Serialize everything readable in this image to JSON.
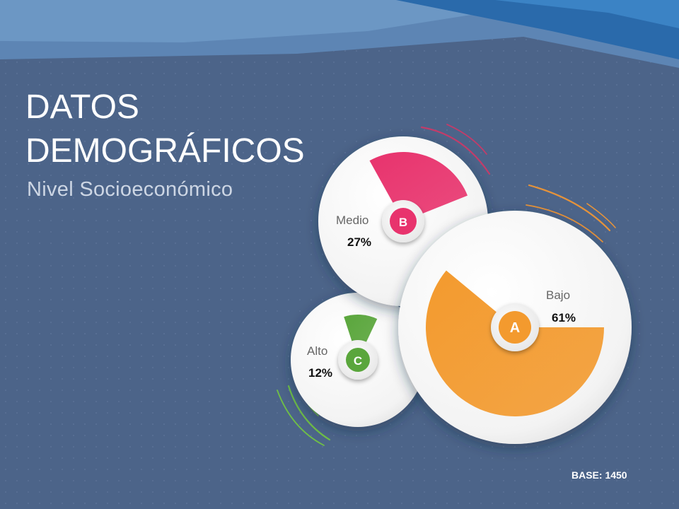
{
  "title": [
    "DATOS",
    "DEMOGRÁFICOS"
  ],
  "subtitle": "Nivel Socioeconómico",
  "base_note": "BASE: 1450",
  "colors": {
    "background": "#4c6489",
    "medio": "#e8336d",
    "bajo": "#f39a2e",
    "alto": "#5aa63c"
  },
  "chart_data": {
    "type": "pie",
    "title": "Nivel Socioeconómico",
    "categories": [
      "Bajo",
      "Medio",
      "Alto"
    ],
    "values": [
      61,
      27,
      12
    ],
    "labels": [
      "61%",
      "27%",
      "12%"
    ],
    "markers": [
      "A",
      "B",
      "C"
    ],
    "legend": "inline-labels",
    "grid": false
  }
}
